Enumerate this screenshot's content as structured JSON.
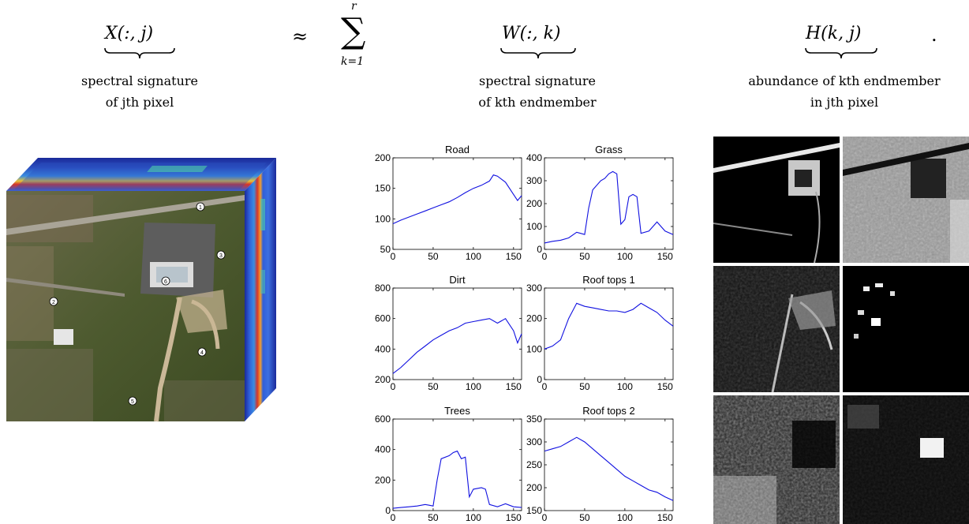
{
  "equation": {
    "lhs": "X(:, j)",
    "approx": "≈",
    "sum": "∑",
    "sum_upper": "r",
    "sum_lower": "k=1",
    "term1": "W(:, k)",
    "term2": "H(k, j)",
    "period": "."
  },
  "captions": {
    "lhs_line1": "spectral signature",
    "lhs_line2": "of jth pixel",
    "w_line1": "spectral signature",
    "w_line2": "of kth endmember",
    "h_line1": "abundance of kth endmember",
    "h_line2": "in jth pixel"
  },
  "cube": {
    "markers": [
      "1",
      "2",
      "3",
      "4",
      "5",
      "6"
    ]
  },
  "chart_data": [
    {
      "type": "line",
      "title": "Road",
      "xlim": [
        0,
        160
      ],
      "ylim": [
        50,
        200
      ],
      "xticks": [
        0,
        50,
        100,
        150
      ],
      "yticks": [
        50,
        100,
        150,
        200
      ],
      "x": [
        0,
        10,
        20,
        30,
        40,
        50,
        60,
        70,
        80,
        90,
        100,
        110,
        120,
        125,
        130,
        140,
        150,
        155,
        160
      ],
      "y": [
        92,
        98,
        103,
        108,
        113,
        118,
        123,
        128,
        135,
        143,
        150,
        155,
        162,
        172,
        170,
        160,
        140,
        130,
        138
      ]
    },
    {
      "type": "line",
      "title": "Grass",
      "xlim": [
        0,
        160
      ],
      "ylim": [
        0,
        400
      ],
      "xticks": [
        0,
        50,
        100,
        150
      ],
      "yticks": [
        0,
        100,
        200,
        300,
        400
      ],
      "x": [
        0,
        10,
        20,
        30,
        40,
        45,
        50,
        55,
        60,
        70,
        75,
        80,
        85,
        90,
        95,
        100,
        105,
        110,
        115,
        120,
        130,
        140,
        150,
        160
      ],
      "y": [
        28,
        35,
        40,
        50,
        75,
        70,
        65,
        180,
        260,
        300,
        310,
        330,
        340,
        330,
        110,
        130,
        230,
        240,
        230,
        70,
        80,
        120,
        80,
        65
      ]
    },
    {
      "type": "line",
      "title": "Dirt",
      "xlim": [
        0,
        160
      ],
      "ylim": [
        200,
        800
      ],
      "xticks": [
        0,
        50,
        100,
        150
      ],
      "yticks": [
        200,
        400,
        600,
        800
      ],
      "x": [
        0,
        10,
        20,
        30,
        40,
        50,
        60,
        70,
        80,
        90,
        100,
        110,
        120,
        130,
        140,
        150,
        155,
        160
      ],
      "y": [
        240,
        280,
        330,
        380,
        420,
        460,
        490,
        520,
        540,
        570,
        580,
        590,
        600,
        570,
        600,
        520,
        440,
        500
      ]
    },
    {
      "type": "line",
      "title": "Roof tops 1",
      "xlim": [
        0,
        160
      ],
      "ylim": [
        0,
        300
      ],
      "xticks": [
        0,
        50,
        100,
        150
      ],
      "yticks": [
        0,
        100,
        200,
        300
      ],
      "x": [
        0,
        10,
        20,
        30,
        40,
        50,
        60,
        70,
        80,
        90,
        100,
        110,
        120,
        130,
        140,
        150,
        160
      ],
      "y": [
        100,
        110,
        130,
        200,
        250,
        240,
        235,
        230,
        225,
        225,
        220,
        230,
        250,
        235,
        220,
        195,
        175
      ]
    },
    {
      "type": "line",
      "title": "Trees",
      "xlim": [
        0,
        160
      ],
      "ylim": [
        0,
        600
      ],
      "xticks": [
        0,
        50,
        100,
        150
      ],
      "yticks": [
        0,
        200,
        400,
        600
      ],
      "x": [
        0,
        10,
        20,
        30,
        40,
        45,
        50,
        55,
        60,
        70,
        75,
        80,
        85,
        90,
        95,
        100,
        110,
        115,
        120,
        130,
        140,
        150,
        160
      ],
      "y": [
        15,
        20,
        25,
        30,
        40,
        35,
        30,
        200,
        340,
        360,
        380,
        390,
        340,
        350,
        90,
        140,
        150,
        140,
        40,
        25,
        45,
        25,
        20
      ]
    },
    {
      "type": "line",
      "title": "Roof tops 2",
      "xlim": [
        0,
        160
      ],
      "ylim": [
        150,
        350
      ],
      "xticks": [
        0,
        50,
        100,
        150
      ],
      "yticks": [
        150,
        200,
        250,
        300,
        350
      ],
      "x": [
        0,
        10,
        20,
        30,
        40,
        50,
        60,
        70,
        80,
        90,
        100,
        110,
        120,
        130,
        140,
        150,
        160
      ],
      "y": [
        280,
        285,
        290,
        300,
        310,
        300,
        285,
        270,
        255,
        240,
        225,
        215,
        205,
        195,
        190,
        180,
        172
      ]
    }
  ]
}
